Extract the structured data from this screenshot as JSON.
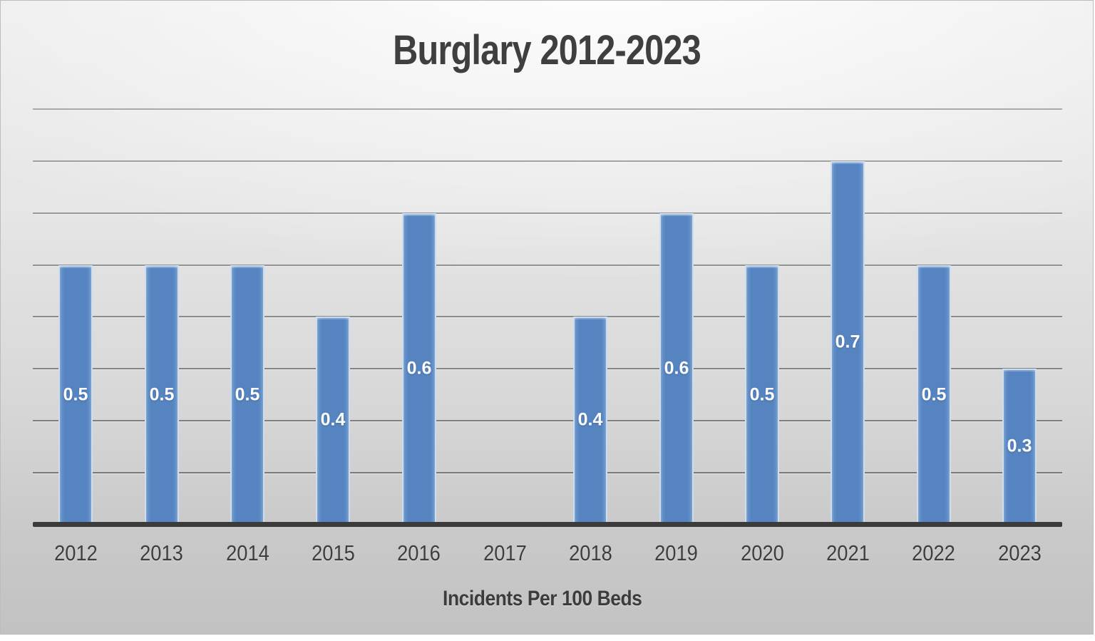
{
  "chart_data": {
    "type": "bar",
    "title": "Burglary 2012-2023",
    "xlabel": "Incidents Per 100 Beds",
    "ylabel": "",
    "categories": [
      "2012",
      "2013",
      "2014",
      "2015",
      "2016",
      "2017",
      "2018",
      "2019",
      "2020",
      "2021",
      "2022",
      "2023"
    ],
    "values": [
      0.5,
      0.5,
      0.5,
      0.4,
      0.6,
      null,
      0.4,
      0.6,
      0.5,
      0.7,
      0.5,
      0.3
    ],
    "bar_labels": [
      "0.5",
      "0.5",
      "0.5",
      "0.4",
      "0.6",
      "",
      "0.4",
      "0.6",
      "0.5",
      "0.7",
      "0.5",
      "0.3"
    ],
    "ylim": [
      0,
      0.8
    ],
    "grid_step": 0.1,
    "grid": "on",
    "y_tick_labels_visible": false,
    "legend": "none",
    "colors": {
      "bar": "#5584c1",
      "bar_rim": "#dee9f5",
      "bar_label_text": "#ffffff",
      "gridline": "#757575",
      "axis_line": "#3b3b3b",
      "title_text": "#3f3f3f",
      "tick_text": "#3d3d3d",
      "background_top": "#ebebeb",
      "background_bottom": "#c2c2c2"
    }
  }
}
